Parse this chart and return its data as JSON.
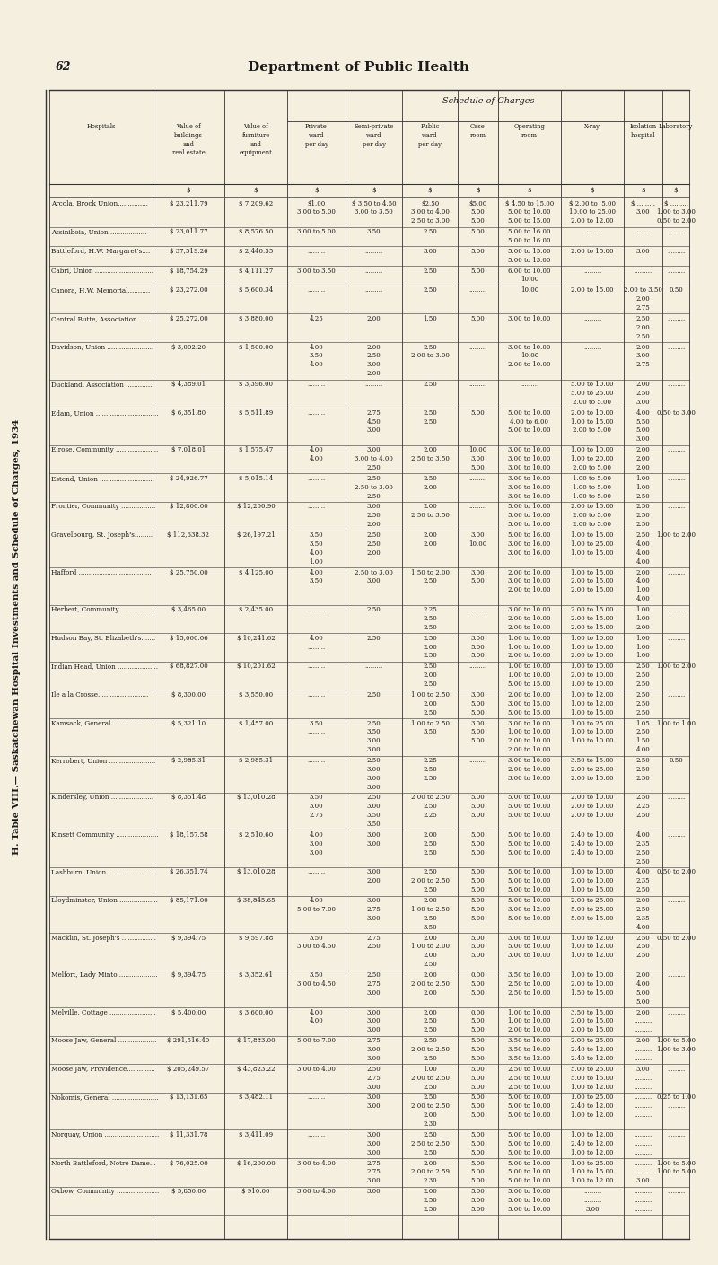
{
  "page_number": "62",
  "header": "Department of Public Health",
  "table_title": "H. Table VIII.— Saskatchewan Hospital Investments and Schedule of Charges, 1934",
  "col_headers": [
    "Hospitals",
    "Value of\nbuildings\nand\nreal estate",
    "Value of\nfurniture\nand\nequipment",
    "Private\nward\nper day",
    "Semi-private\nward\nper day",
    "Public\nward\nper day",
    "Case\nroom",
    "Operating\nroom",
    "X-ray",
    "Isolation\nhospital",
    "Laboratory"
  ],
  "rows": [
    [
      "Arcola, Brock Union...............",
      "$ 23,211.79",
      "$ 7,209.62",
      "$1.00\n3.00 to 5.00",
      "$ 3.50 to 4.50\n3.00 to 3.50",
      "$2.50\n3.00 to 4.00\n2.50 to 3.00",
      "$5.00\n5.00\n5.00",
      "$ 4.50 to 15.00\n5.00 to 10.00\n5.00 to 15.00",
      "$ 2.00 to  5.00\n10.00 to 25.00\n2.00 to 12.00",
      "$ .........\n3.00",
      "$ .........\n1.00 to 3.00\n0.50 to 2.00"
    ],
    [
      "Assiniboia, Union ..................",
      "$ 23,011.77",
      "$ 8,576.50",
      "3.00 to 5.00",
      "3.50",
      "2.50",
      "5.00",
      "5.00 to 16.00\n5.00 to 16.00",
      ".........",
      ".........",
      "........."
    ],
    [
      "Battleford, H.W. Margaret's....",
      "$ 37,519.26",
      "$ 2,440.55",
      ".........",
      ".........",
      "3.00",
      "5.00",
      "5.00 to 15.00\n5.00 to 13.00",
      "2.00 to 15.00",
      "3.00",
      "........."
    ],
    [
      "Cabri, Union .............................",
      "$ 18,754.29",
      "$ 4,111.27",
      "3.00 to 3.50",
      ".........",
      "2.50",
      "5.00",
      "6.00 to 10.00\n10.00",
      ".........",
      ".........",
      "........."
    ],
    [
      "Canora, H.W. Memorial...........",
      "$ 23,272.00",
      "$ 5,600.34",
      ".........",
      ".........",
      "2.50",
      ".........",
      "10.00",
      "2.00 to 15.00",
      "2.00 to 3.50\n2.00\n2.75",
      "0.50"
    ],
    [
      "Central Butte, Association.......",
      "$ 25,272.00",
      "$ 3,880.00",
      "4.25",
      "2.00",
      "1.50",
      "5.00",
      "3.00 to 10.00",
      ".........",
      "2.50\n2.00\n2.50",
      "........."
    ],
    [
      "Davidson, Union .......................",
      "$ 3,002.20",
      "$ 1,500.00",
      "4.00\n3.50\n4.00",
      "2.00\n2.50\n3.00\n2.00",
      "2.50\n2.00 to 3.00",
      ".........",
      "3.00 to 10.00\n10.00\n2.00 to 10.00",
      ".........",
      "2.00\n3.00\n2.75",
      "........."
    ],
    [
      "Duckland, Association ..............",
      "$ 4,389.01",
      "$ 3,396.00",
      ".........",
      ".........",
      "2.50",
      ".........",
      ".........",
      "5.00 to 10.00\n5.00 to 25.00\n2.00 to 5.00",
      "2.00\n2.50\n3.00",
      "........."
    ],
    [
      "Edam, Union ...............................",
      "$ 6,351.80",
      "$ 5,511.89",
      ".........",
      "2.75\n4.50\n3.00",
      "2.50\n2.50",
      "5.00",
      "5.00 to 10.00\n4.00 to 6.00\n5.00 to 10.00",
      "2.00 to 10.00\n1.00 to 15.00\n2.00 to 5.00",
      "4.00\n5.50\n5.00\n3.00",
      "0.50 to 3.00"
    ],
    [
      "Elrose, Community .....................",
      "$ 7,018.01",
      "$ 1,575.47",
      "4.00\n4.00",
      "3.00\n3.00 to 4.00\n2.50",
      "2.00\n2.50 to 3.50",
      "10.00\n3.00\n5.00",
      "3.00 to 10.00\n3.00 to 10.00\n3.00 to 10.00",
      "1.00 to 10.00\n1.00 to 20.00\n2.00 to 5.00",
      "2.00\n2.00\n2.00",
      "........."
    ],
    [
      "Estend, Union ...........................",
      "$ 24,926.77",
      "$ 5,015.14",
      ".........",
      "2.50\n2.50 to 3.00\n2.50",
      "2.50\n2.00",
      ".........",
      "3.00 to 10.00\n3.00 to 10.00\n3.00 to 10.00",
      "1.00 to 5.00\n1.00 to 5.00\n1.00 to 5.00",
      "1.00\n1.00\n2.50",
      "........."
    ],
    [
      "Frontier, Community .................",
      "$ 12,800.00",
      "$ 12,200.90",
      ".........",
      "3.00\n2.50\n2.00",
      "2.00\n2.50 to 3.50",
      ".........",
      "5.00 to 10.00\n5.00 to 16.00\n5.00 to 16.00",
      "2.00 to 15.00\n2.00 to 5.00\n2.00 to 5.00",
      "2.50\n2.50\n2.50",
      "........."
    ],
    [
      "Gravelbourg, St. Joseph's.........",
      "$ 112,638.32",
      "$ 26,197.21",
      "3.50\n3.50\n4.00\n1.00",
      "2.50\n2.50\n2.00",
      "2.00\n2.00",
      "3.00\n10.00",
      "5.00 to 16.00\n3.00 to 16.00\n3.00 to 16.00",
      "1.00 to 15.00\n1.00 to 25.00\n1.00 to 15.00",
      "2.50\n4.00\n4.00\n4.00",
      "1.00 to 2.00"
    ],
    [
      "Hafford ....................................",
      "$ 25,750.00",
      "$ 4,125.00",
      "4.00\n3.50",
      "2.50 to 3.00\n3.00",
      "1.50 to 2.00\n2.50",
      "3.00\n5.00",
      "2.00 to 10.00\n3.00 to 10.00\n2.00 to 10.00",
      "1.00 to 15.00\n2.00 to 15.00\n2.00 to 15.00",
      "2.00\n4.00\n1.00\n4.00",
      "........."
    ],
    [
      "Herbert, Community .................",
      "$ 3,465.00",
      "$ 2,435.00",
      ".........",
      "2.50",
      "2.25\n2.50\n2.50",
      ".........",
      "3.00 to 10.00\n2.00 to 10.00\n2.00 to 10.00",
      "2.00 to 15.00\n2.00 to 15.00\n2.00 to 15.00",
      "1.00\n1.00\n2.00",
      "........."
    ],
    [
      "Hudson Bay, St. Elizabeth's.......",
      "$ 15,000.06",
      "$ 10,241.62",
      "4.00\n.........",
      "2.50",
      "2.50\n2.00\n2.50",
      "3.00\n5.00\n5.00",
      "1.00 to 10.00\n1.00 to 10.00\n2.00 to 10.00",
      "1.00 to 10.00\n1.00 to 10.00\n2.00 to 10.00",
      "1.00\n1.00\n1.00",
      "........."
    ],
    [
      "Indian Head, Union ....................",
      "$ 68,827.00",
      "$ 10,201.62",
      ".........",
      ".........",
      "2.50\n2.00\n2.50",
      ".........",
      "1.00 to 10.00\n1.00 to 10.00\n5.00 to 15.00",
      "1.00 to 10.00\n2.00 to 10.00\n1.00 to 10.00",
      "2.50\n2.50\n2.50",
      "1.00 to 2.00"
    ],
    [
      "Ile a la Crosse.........................",
      "$ 8,300.00",
      "$ 3,550.00",
      ".........",
      "2.50",
      "1.00 to 2.50\n2.00\n2.50",
      "3.00\n5.00\n5.00",
      "2.00 to 10.00\n3.00 to 15.00\n5.00 to 15.00",
      "1.00 to 12.00\n1.00 to 12.00\n1.00 to 15.00",
      "2.50\n2.50\n2.50",
      "........."
    ],
    [
      "Kamsack, General .....................",
      "$ 5,321.10",
      "$ 1,457.00",
      "3.50\n.........",
      "2.50\n3.50\n3.00\n3.00",
      "1.00 to 2.50\n3.50",
      "3.00\n5.00\n5.00",
      "3.00 to 10.00\n1.00 to 10.00\n2.00 to 10.00\n2.00 to 10.00",
      "1.00 to 25.00\n1.00 to 10.00\n1.00 to 10.00",
      "1.05\n2.50\n1.50\n4.00",
      "1.00 to 1.00"
    ],
    [
      "Kerrobert, Union .......................",
      "$ 2,985.31",
      "$ 2,985.31",
      ".........",
      "2.50\n3.00\n3.00\n3.00",
      "2.25\n2.50\n2.50",
      ".........",
      "3.00 to 10.00\n2.00 to 10.00\n3.00 to 10.00",
      "3.50 to 15.00\n2.00 to 25.00\n2.00 to 15.00",
      "2.50\n2.50\n2.50",
      "0.50"
    ],
    [
      "Kindersley, Union .....................",
      "$ 8,351.48",
      "$ 13,010.28",
      "3.50\n3.00\n2.75",
      "2.50\n3.00\n3.50\n3.50",
      "2.00 to 2.50\n2.50\n2.25",
      "5.00\n5.00\n5.00",
      "5.00 to 10.00\n5.00 to 10.00\n5.00 to 10.00",
      "2.00 to 10.00\n2.00 to 10.00\n2.00 to 10.00",
      "2.50\n2.25\n2.50",
      "........."
    ],
    [
      "Kinsett Community .....................",
      "$ 18,157.58",
      "$ 2,510.60",
      "4.00\n3.00\n3.00",
      "3.00\n3.00",
      "2.00\n2.50\n2.50",
      "5.00\n5.00\n5.00",
      "5.00 to 10.00\n5.00 to 10.00\n5.00 to 10.00",
      "2.40 to 10.00\n2.40 to 10.00\n2.40 to 10.00",
      "4.00\n2.35\n2.50\n2.50",
      "........."
    ],
    [
      "Lashburn, Union .......................",
      "$ 26,351.74",
      "$ 13,010.28",
      ".........",
      "3.00\n2.00",
      "2.50\n2.00 to 2.50\n2.50",
      "5.00\n5.00\n5.00",
      "5.00 to 10.00\n5.00 to 10.00\n5.00 to 10.00",
      "1.00 to 10.00\n2.00 to 10.00\n1.00 to 15.00",
      "4.00\n2.35\n2.50",
      "0.50 to 2.00"
    ],
    [
      "Lloydminster, Union ...................",
      "$ 85,171.00",
      "$ 38,845.65",
      "4.00\n5.00 to 7.00",
      "3.00\n2.75\n3.00",
      "2.00\n1.00 to 2.50\n2.50\n3.50",
      "5.00\n5.00\n5.00",
      "5.00 to 10.00\n3.00 to 12.00\n5.00 to 10.00",
      "2.00 to 25.00\n5.00 to 25.00\n5.00 to 15.00",
      "2.00\n2.50\n2.35\n4.00",
      "........."
    ],
    [
      "Macklin, St. Joseph's .................",
      "$ 9,394.75",
      "$ 9,597.88",
      "3.50\n3.00 to 4.50",
      "2.75\n2.50",
      "2.00\n1.00 to 2.00\n2.00\n2.50",
      "5.00\n5.00\n5.00",
      "3.00 to 10.00\n5.00 to 10.00\n3.00 to 10.00",
      "1.00 to 12.00\n1.00 to 12.00\n1.00 to 12.00",
      "2.50\n2.50\n2.50",
      "0.50 to 2.00"
    ],
    [
      "Melfort, Lady Minto....................",
      "$ 9,394.75",
      "$ 3,352.61",
      "3.50\n3.00 to 4.50",
      "2.50\n2.75\n3.00",
      "2.00\n2.00 to 2.50\n2.00",
      "0.00\n5.00\n5.00",
      "3.50 to 10.00\n2.50 to 10.00\n2.50 to 10.00",
      "1.00 to 10.00\n2.00 to 10.00\n1.50 to 15.00",
      "2.00\n4.00\n5.00\n5.00",
      "........."
    ],
    [
      "Melville, Cottage .......................",
      "$ 5,400.00",
      "$ 3,600.00",
      "4.00\n4.00",
      "3.00\n3.00\n3.00",
      "2.00\n2.50\n2.50",
      "0.00\n5.00\n5.00",
      "1.00 to 10.00\n1.00 to 10.00\n2.00 to 10.00",
      "3.50 to 15.00\n2.00 to 15.00\n2.00 to 15.00",
      "2.00\n.........\n.........",
      "........."
    ],
    [
      "Moose Jaw, General ...................",
      "$ 291,516.40",
      "$ 17,883.00",
      "5.00 to 7.00",
      "2.75\n3.00\n3.00",
      "2.50\n2.00 to 2.50\n2.50",
      "5.00\n5.00\n5.00",
      "3.50 to 10.00\n3.50 to 10.00\n3.50 to 12.00",
      "2.00 to 25.00\n2.40 to 12.00\n2.40 to 12.00",
      "2.00\n.........\n.........",
      "1.00 to 5.00\n1.00 to 3.00"
    ],
    [
      "Moose Jaw, Providence..............",
      "$ 205,249.57",
      "$ 43,823.22",
      "3.00 to 4.00",
      "2.50\n2.75\n3.00",
      "1.00\n2.00 to 2.50\n2.50",
      "5.00\n5.00\n5.00",
      "2.50 to 10.00\n2.50 to 10.00\n2.50 to 10.00",
      "5.00 to 25.00\n5.00 to 15.00\n1.00 to 12.00",
      "3.00\n.........\n.........",
      "........."
    ],
    [
      "Nokomis, General .......................",
      "$ 13,131.65",
      "$ 3,482.11",
      ".........",
      "3.00\n3.00",
      "2.50\n2.00 to 2.50\n2.00\n2.30",
      "5.00\n5.00\n5.00",
      "5.00 to 10.00\n5.00 to 10.00\n5.00 to 10.00",
      "1.00 to 25.00\n2.40 to 12.00\n1.00 to 12.00",
      ".........\n.........\n.........",
      "0.25 to 1.00\n........."
    ],
    [
      "Norquay, Union ...........................",
      "$ 11,331.78",
      "$ 3,411.09",
      ".........",
      "3.00\n3.00\n3.00",
      "2.50\n2.50 to 2.50\n2.50",
      "5.00\n5.00\n5.00",
      "5.00 to 10.00\n5.00 to 10.00\n5.00 to 10.00",
      "1.00 to 12.00\n2.40 to 12.00\n1.00 to 12.00",
      ".........\n.........\n.........",
      "........."
    ],
    [
      "North Battleford, Notre Dame...",
      "$ 76,025.00",
      "$ 16,200.00",
      "3.00 to 4.00",
      "2.75\n2.75\n3.00",
      "2.00\n2.00 to 2.59\n2.30",
      "5.00\n5.00\n5.00",
      "5.00 to 10.00\n5.00 to 10.00\n5.00 to 10.00",
      "1.00 to 25.00\n1.00 to 15.00\n1.00 to 12.00",
      ".........\n.........\n3.00",
      "1.00 to 5.00\n1.00 to 5.00"
    ],
    [
      "Oxbow, Community .....................",
      "$ 5,850.00",
      "$ 910.00",
      "3.00 to 4.00",
      "3.00",
      "2.00\n2.50\n2.50",
      "5.00\n5.00\n5.00",
      "5.00 to 10.00\n5.00 to 10.00\n5.00 to 10.00",
      ".........\n.........\n3.00",
      ".........\n.........\n.........",
      "........."
    ]
  ],
  "bg_color": "#f5efe0",
  "text_color": "#1a1a1a",
  "line_color": "#333333",
  "font_size": 5.2,
  "header_font_size": 7.5,
  "title_font_size": 9.0
}
